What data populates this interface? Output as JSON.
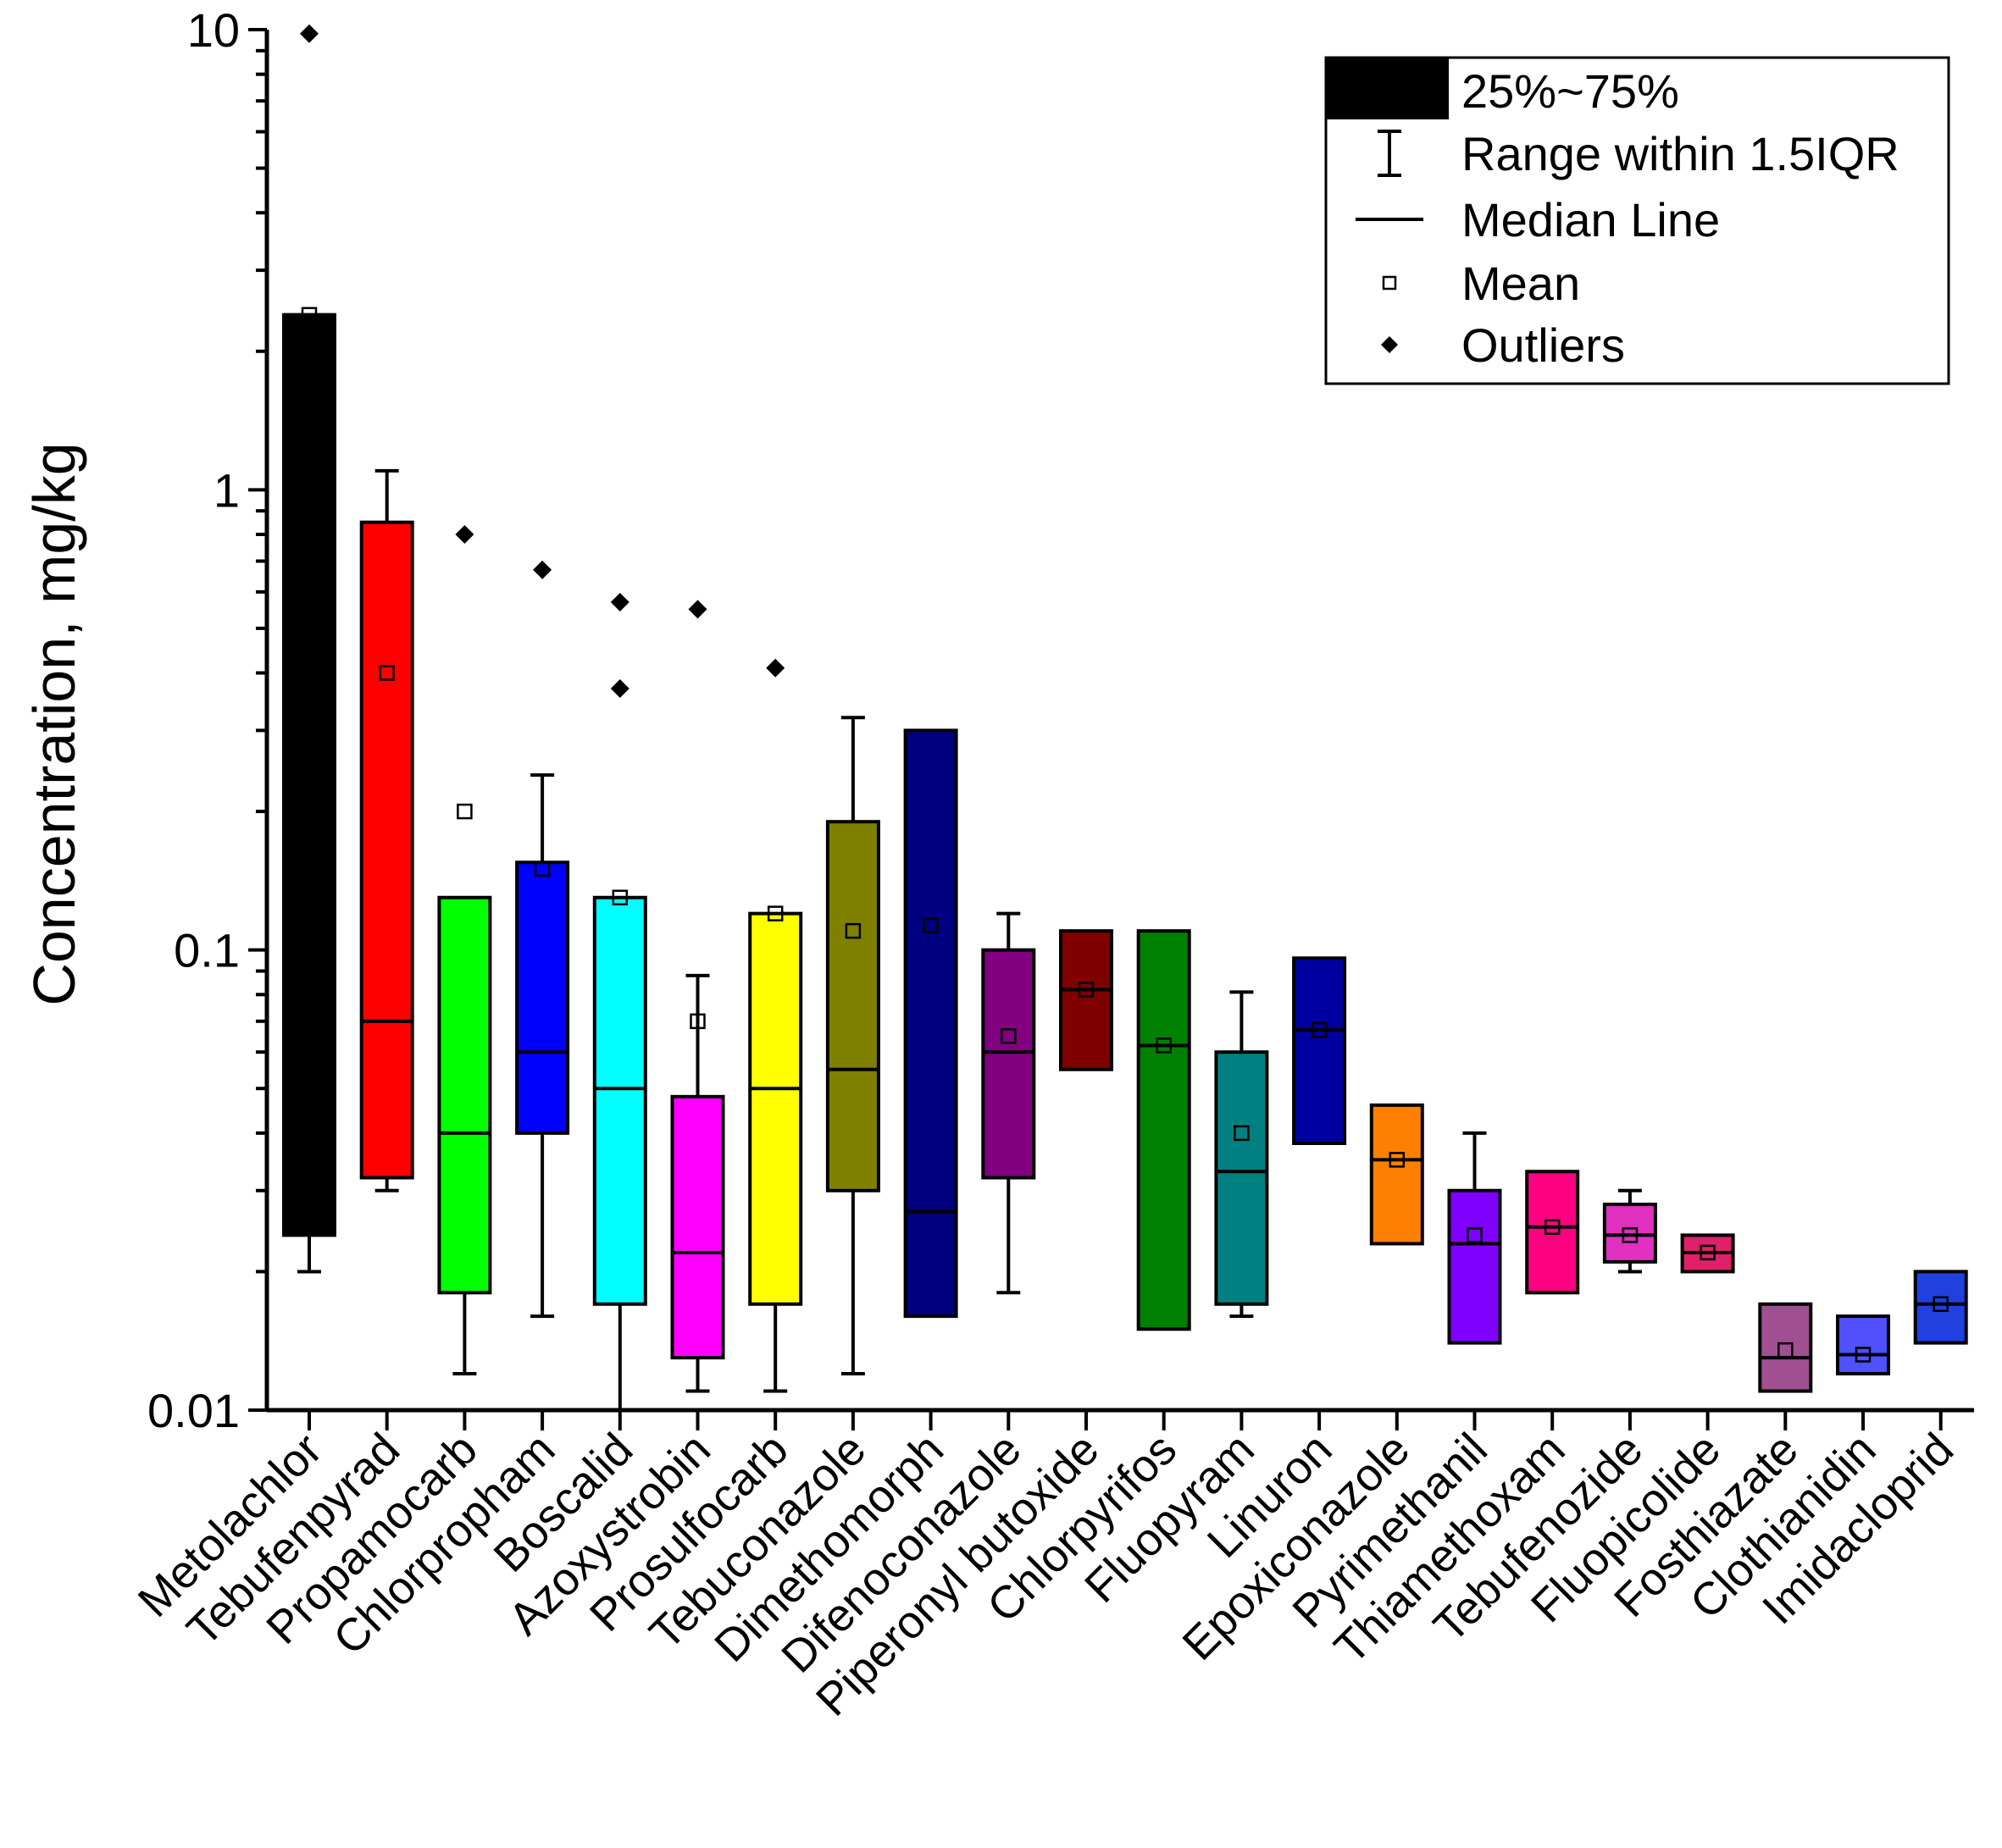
{
  "chart_data": {
    "type": "box",
    "y_scale": "log",
    "ylabel": "Concentration, mg/kg",
    "xlabel": "",
    "ylim": [
      0.01,
      10
    ],
    "yticks": [
      {
        "value": 0.01,
        "label": "0.01"
      },
      {
        "value": 0.1,
        "label": "0.1"
      },
      {
        "value": 1,
        "label": "1"
      },
      {
        "value": 10,
        "label": "10"
      }
    ],
    "legend": {
      "placement": "top-right",
      "items": [
        {
          "key": "box",
          "label": "25%~75%"
        },
        {
          "key": "whisker",
          "label": "Range within 1.5IQR"
        },
        {
          "key": "median",
          "label": "Median Line"
        },
        {
          "key": "mean",
          "label": "Mean"
        },
        {
          "key": "outlier",
          "label": "Outliers"
        }
      ]
    },
    "series": [
      {
        "name": "Metolachlor",
        "color": "#000000",
        "q1": 0.024,
        "q3": 2.4,
        "median": 2.4,
        "mean": 2.4,
        "whisker_low": 0.02,
        "whisker_high": 2.4,
        "outliers": [
          9.8
        ]
      },
      {
        "name": "Tebufenpyrad",
        "color": "#ff0000",
        "q1": 0.032,
        "q3": 0.85,
        "median": 0.07,
        "mean": 0.4,
        "whisker_low": 0.03,
        "whisker_high": 1.1,
        "outliers": []
      },
      {
        "name": "Propamocarb",
        "color": "#00ff00",
        "q1": 0.018,
        "q3": 0.13,
        "median": 0.04,
        "mean": 0.2,
        "whisker_low": 0.012,
        "whisker_high": 0.13,
        "outliers": [
          0.8
        ]
      },
      {
        "name": "Chlorpropham",
        "color": "#0000ff",
        "q1": 0.04,
        "q3": 0.155,
        "median": 0.06,
        "mean": 0.15,
        "whisker_low": 0.016,
        "whisker_high": 0.24,
        "outliers": [
          0.67
        ]
      },
      {
        "name": "Boscalid",
        "color": "#00ffff",
        "q1": 0.017,
        "q3": 0.13,
        "median": 0.05,
        "mean": 0.13,
        "whisker_low": 0.01,
        "whisker_high": 0.13,
        "outliers": [
          0.57,
          0.37
        ]
      },
      {
        "name": "Azoxystrobin",
        "color": "#ff00ff",
        "q1": 0.013,
        "q3": 0.048,
        "median": 0.022,
        "mean": 0.07,
        "whisker_low": 0.011,
        "whisker_high": 0.088,
        "outliers": [
          0.55
        ]
      },
      {
        "name": "Prosulfocarb",
        "color": "#ffff00",
        "q1": 0.017,
        "q3": 0.12,
        "median": 0.05,
        "mean": 0.12,
        "whisker_low": 0.011,
        "whisker_high": 0.12,
        "outliers": [
          0.41
        ]
      },
      {
        "name": "Tebuconazole",
        "color": "#808000",
        "q1": 0.03,
        "q3": 0.19,
        "median": 0.055,
        "mean": 0.11,
        "whisker_low": 0.012,
        "whisker_high": 0.32,
        "outliers": []
      },
      {
        "name": "Dimethomorph",
        "color": "#000080",
        "q1": 0.016,
        "q3": 0.3,
        "median": 0.027,
        "mean": 0.113,
        "whisker_low": 0.016,
        "whisker_high": 0.3,
        "outliers": []
      },
      {
        "name": "Difenoconazole",
        "color": "#800080",
        "q1": 0.032,
        "q3": 0.1,
        "median": 0.06,
        "mean": 0.065,
        "whisker_low": 0.018,
        "whisker_high": 0.12,
        "outliers": []
      },
      {
        "name": "Piperonyl butoxide",
        "color": "#800000",
        "q1": 0.055,
        "q3": 0.11,
        "median": 0.082,
        "mean": 0.082,
        "whisker_low": 0.055,
        "whisker_high": 0.11,
        "outliers": []
      },
      {
        "name": "Chlorpyrifos",
        "color": "#008000",
        "q1": 0.015,
        "q3": 0.11,
        "median": 0.062,
        "mean": 0.062,
        "whisker_low": 0.015,
        "whisker_high": 0.11,
        "outliers": []
      },
      {
        "name": "Fluopyram",
        "color": "#008080",
        "q1": 0.017,
        "q3": 0.06,
        "median": 0.033,
        "mean": 0.04,
        "whisker_low": 0.016,
        "whisker_high": 0.081,
        "outliers": []
      },
      {
        "name": "Linuron",
        "color": "#0000a0",
        "q1": 0.038,
        "q3": 0.096,
        "median": 0.067,
        "mean": 0.067,
        "whisker_low": 0.038,
        "whisker_high": 0.096,
        "outliers": []
      },
      {
        "name": "Epoxiconazole",
        "color": "#ff8000",
        "q1": 0.023,
        "q3": 0.046,
        "median": 0.035,
        "mean": 0.035,
        "whisker_low": 0.023,
        "whisker_high": 0.046,
        "outliers": []
      },
      {
        "name": "Pyrimethanil",
        "color": "#8000ff",
        "q1": 0.014,
        "q3": 0.03,
        "median": 0.023,
        "mean": 0.024,
        "whisker_low": 0.014,
        "whisker_high": 0.04,
        "outliers": []
      },
      {
        "name": "Thiamethoxam",
        "color": "#ff0080",
        "q1": 0.018,
        "q3": 0.033,
        "median": 0.025,
        "mean": 0.025,
        "whisker_low": 0.018,
        "whisker_high": 0.033,
        "outliers": []
      },
      {
        "name": "Tebufenozide",
        "color": "#e030c0",
        "q1": 0.021,
        "q3": 0.028,
        "median": 0.024,
        "mean": 0.024,
        "whisker_low": 0.02,
        "whisker_high": 0.03,
        "outliers": []
      },
      {
        "name": "Fluopicolide",
        "color": "#e0206a",
        "q1": 0.02,
        "q3": 0.024,
        "median": 0.022,
        "mean": 0.022,
        "whisker_low": 0.02,
        "whisker_high": 0.024,
        "outliers": []
      },
      {
        "name": "Fosthiazate",
        "color": "#a05090",
        "q1": 0.011,
        "q3": 0.017,
        "median": 0.013,
        "mean": 0.0135,
        "whisker_low": 0.011,
        "whisker_high": 0.017,
        "outliers": []
      },
      {
        "name": "Clothianidin",
        "color": "#5050ff",
        "q1": 0.012,
        "q3": 0.016,
        "median": 0.0132,
        "mean": 0.0132,
        "whisker_low": 0.012,
        "whisker_high": 0.016,
        "outliers": []
      },
      {
        "name": "Imidacloprid",
        "color": "#2040e0",
        "q1": 0.014,
        "q3": 0.02,
        "median": 0.017,
        "mean": 0.017,
        "whisker_low": 0.014,
        "whisker_high": 0.02,
        "outliers": []
      }
    ]
  }
}
